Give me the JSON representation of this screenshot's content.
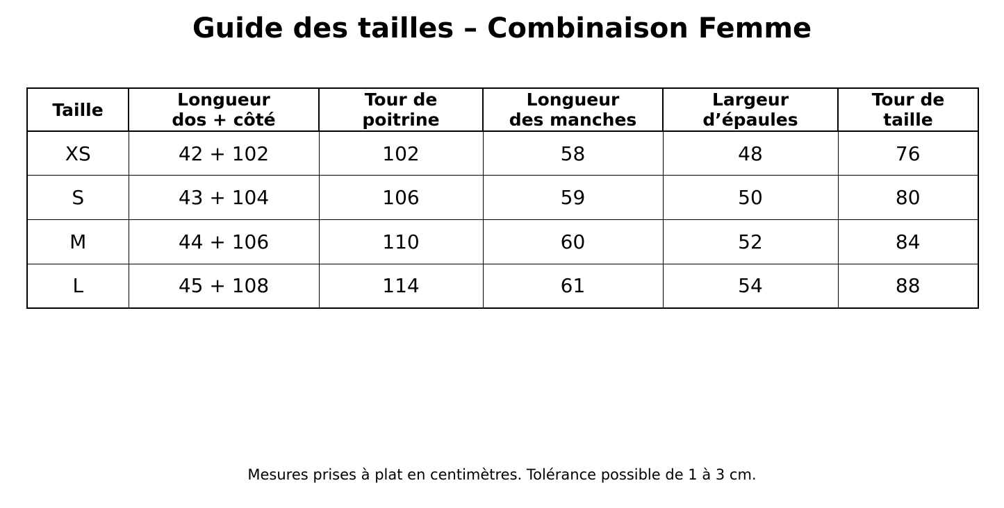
{
  "page": {
    "title": "Guide des tailles – Combinaison Femme",
    "footnote": "Mesures prises à plat en centimètres. Tolérance possible de 1 à 3 cm."
  },
  "table": {
    "headers": [
      {
        "name": "taille",
        "lines": [
          "Taille"
        ]
      },
      {
        "name": "longueur-dos-cote",
        "lines": [
          "Longueur",
          "dos + côté"
        ]
      },
      {
        "name": "tour-de-poitrine",
        "lines": [
          "Tour de",
          "poitrine"
        ]
      },
      {
        "name": "longueur-des-manches",
        "lines": [
          "Longueur",
          "des manches"
        ]
      },
      {
        "name": "largeur-epaules",
        "lines": [
          "Largeur",
          "d’épaules"
        ]
      },
      {
        "name": "tour-de-taille",
        "lines": [
          "Tour de",
          "taille"
        ]
      }
    ],
    "rows": [
      [
        "XS",
        "42 + 102",
        "102",
        "58",
        "48",
        "76"
      ],
      [
        "S",
        "43 + 104",
        "106",
        "59",
        "50",
        "80"
      ],
      [
        "M",
        "44 + 106",
        "110",
        "60",
        "52",
        "84"
      ],
      [
        "L",
        "45 + 108",
        "114",
        "61",
        "54",
        "88"
      ]
    ]
  }
}
